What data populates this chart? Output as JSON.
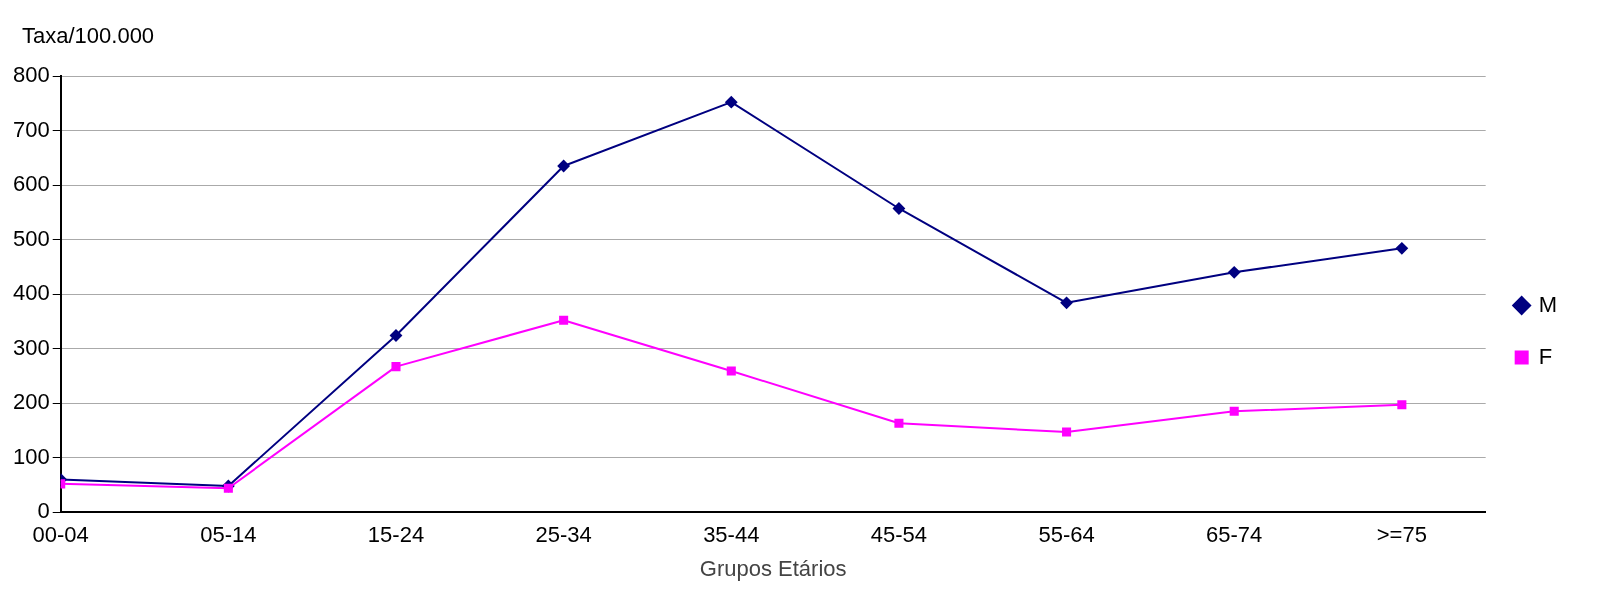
{
  "chart_data": {
    "type": "line",
    "xlabel": "Grupos Etários",
    "ylabel": "Taxa/100.000",
    "categories": [
      "00-04",
      "05-14",
      "15-24",
      "25-34",
      "35-44",
      "45-54",
      "55-64",
      "65-74",
      ">=75"
    ],
    "series": [
      {
        "name": "M",
        "color": "#000080",
        "marker": "diamond",
        "values": [
          60,
          48,
          324,
          635,
          752,
          557,
          384,
          440,
          484
        ]
      },
      {
        "name": "F",
        "color": "#ff00ff",
        "marker": "square",
        "values": [
          52,
          44,
          267,
          352,
          259,
          163,
          147,
          185,
          197
        ]
      }
    ],
    "ylim": [
      0,
      800
    ],
    "yticks": [
      0,
      100,
      200,
      300,
      400,
      500,
      600,
      700,
      800
    ],
    "grid": "y",
    "legend": "right"
  }
}
